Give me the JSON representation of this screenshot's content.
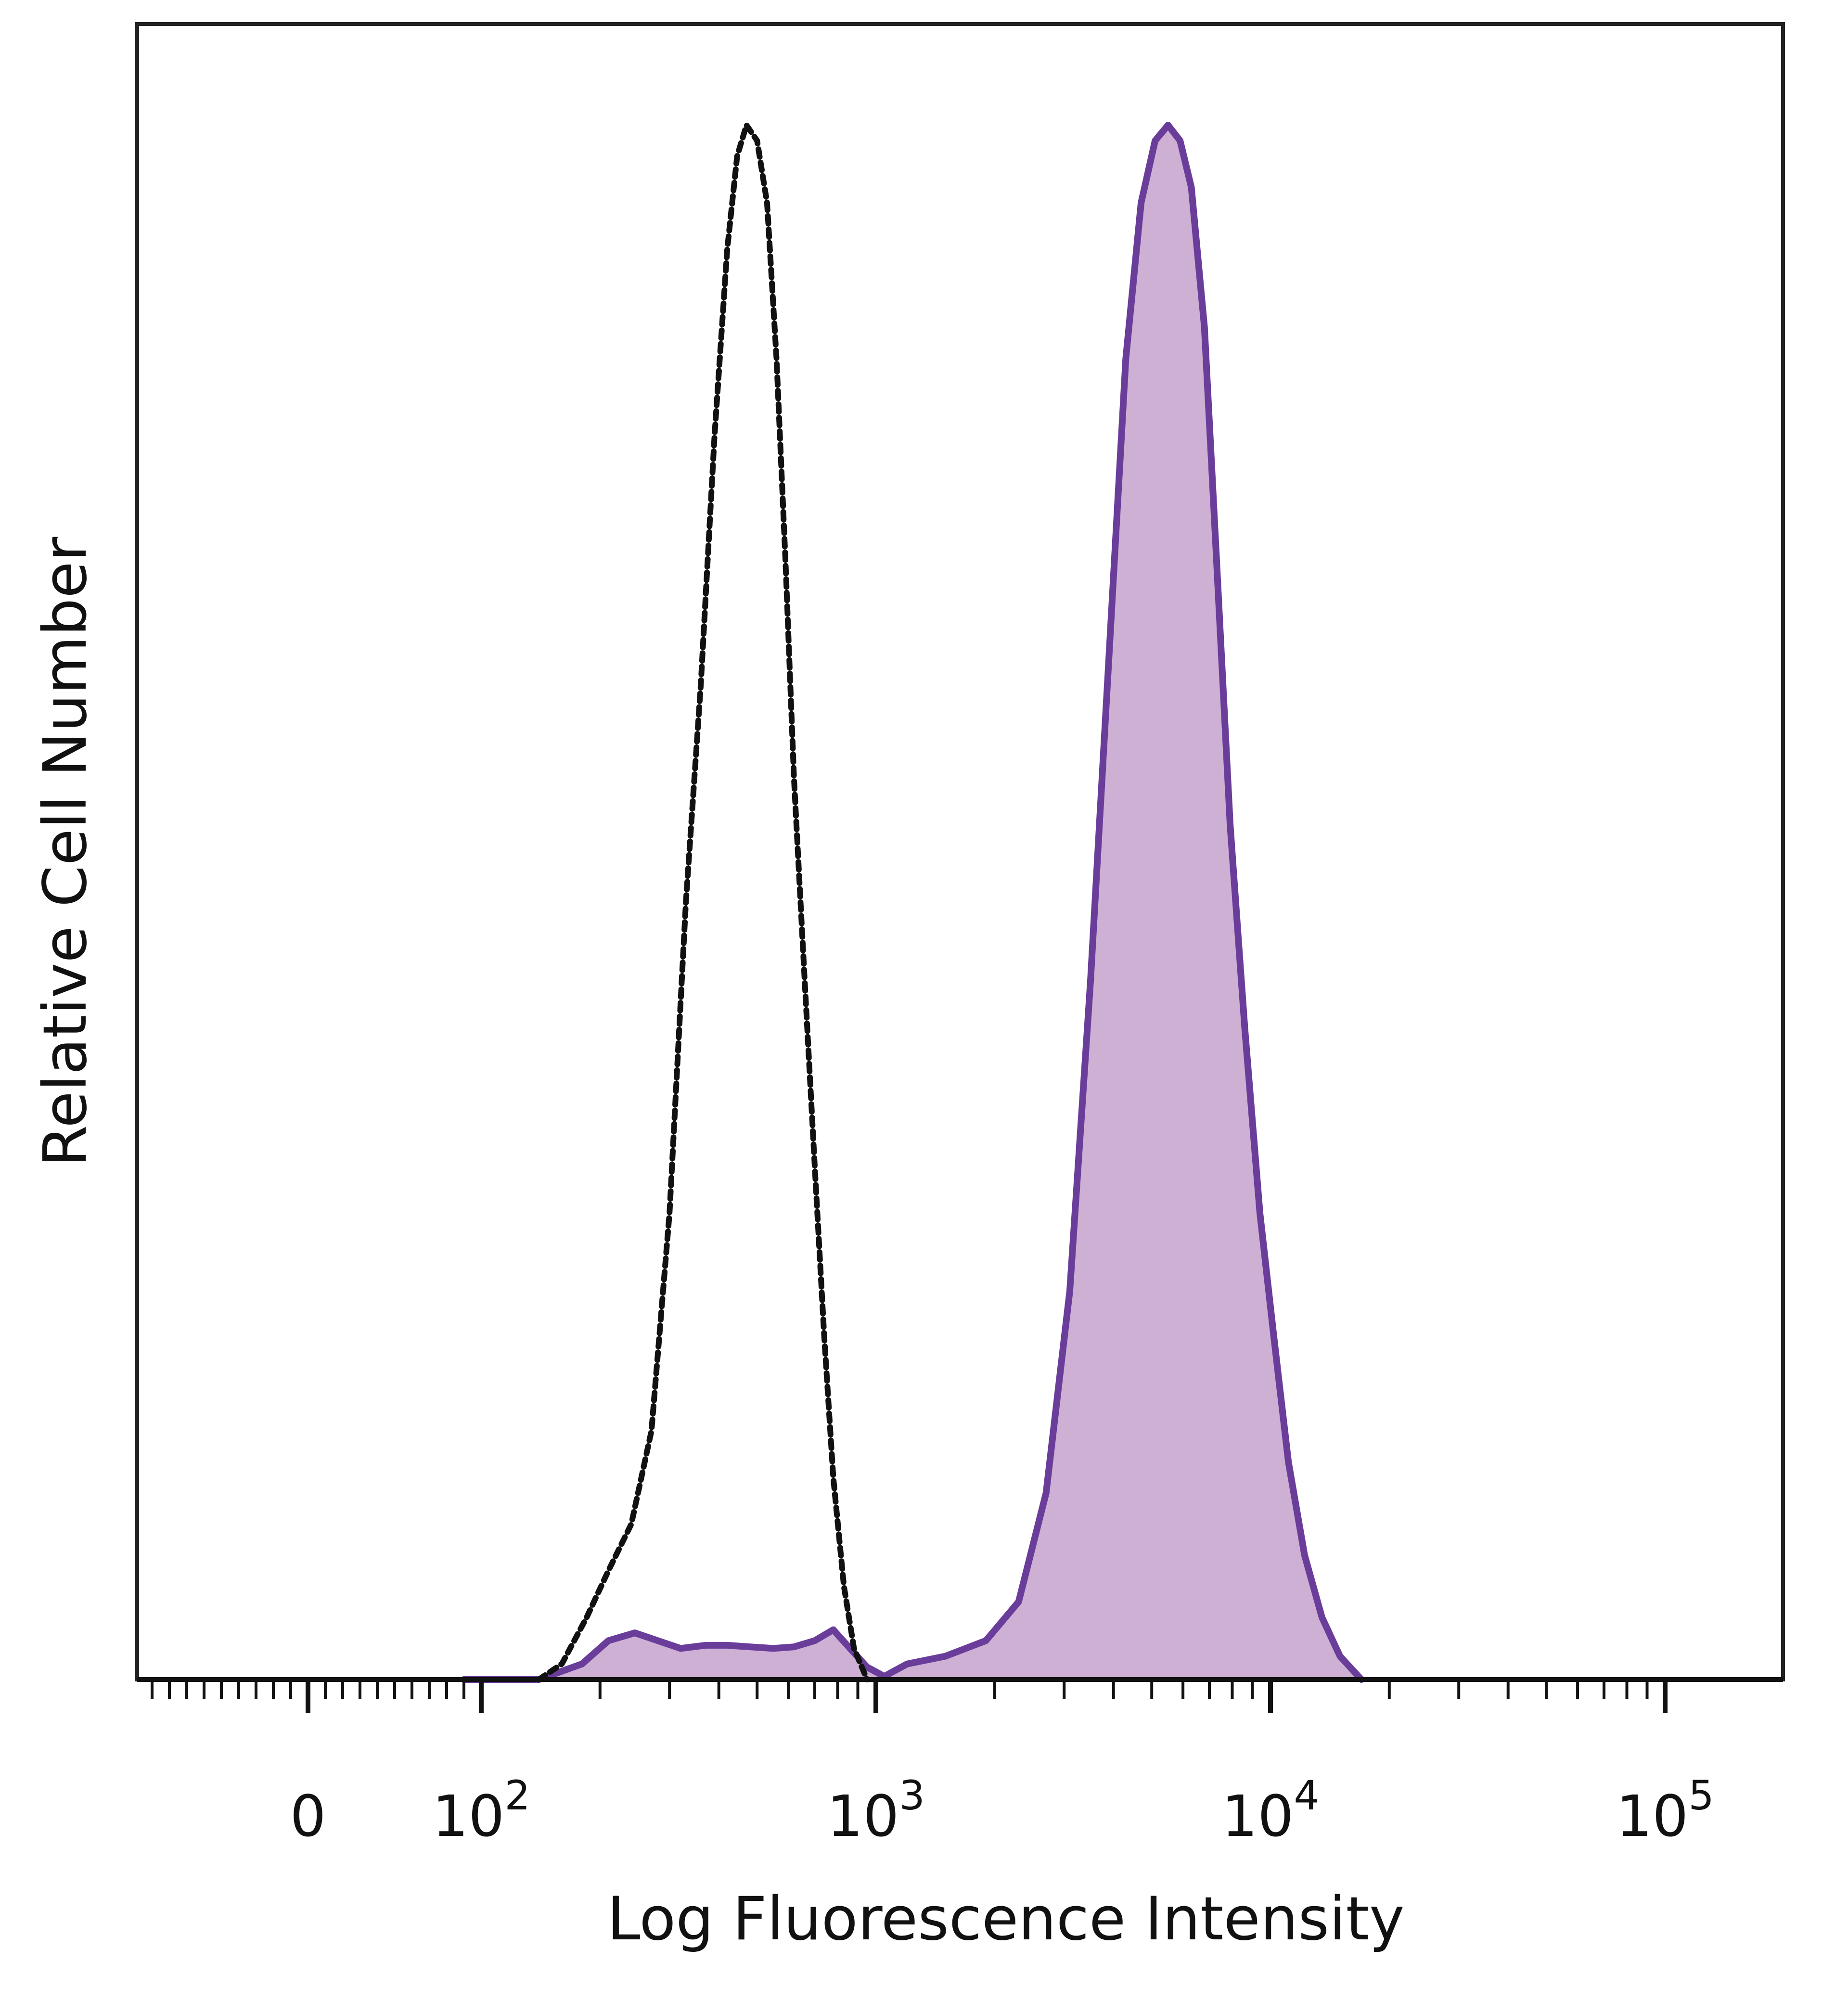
{
  "chart_data": {
    "type": "area",
    "title": "",
    "xlabel": "Log Fluorescence Intensity",
    "ylabel": "Relative Cell Number",
    "x_scale": "biexponential (log)",
    "xlim": [
      -250,
      250000
    ],
    "ylim": [
      0,
      1.0
    ],
    "grid": false,
    "legend": "none",
    "x_ticks": [
      {
        "value": 0,
        "base": "0",
        "exp": ""
      },
      {
        "value": 100,
        "base": "10",
        "exp": "2"
      },
      {
        "value": 1000,
        "base": "10",
        "exp": "3"
      },
      {
        "value": 10000,
        "base": "10",
        "exp": "4"
      },
      {
        "value": 100000,
        "base": "10",
        "exp": "5"
      }
    ],
    "series": [
      {
        "style": "dashed",
        "fill": false,
        "color": "#111111",
        "points": [
          [
            140,
            0.0
          ],
          [
            160,
            0.01
          ],
          [
            185,
            0.04
          ],
          [
            210,
            0.07
          ],
          [
            240,
            0.1
          ],
          [
            270,
            0.16
          ],
          [
            300,
            0.3
          ],
          [
            330,
            0.5
          ],
          [
            360,
            0.64
          ],
          [
            390,
            0.8
          ],
          [
            420,
            0.92
          ],
          [
            445,
            0.98
          ],
          [
            470,
            1.0
          ],
          [
            500,
            0.99
          ],
          [
            530,
            0.95
          ],
          [
            560,
            0.85
          ],
          [
            590,
            0.72
          ],
          [
            620,
            0.58
          ],
          [
            660,
            0.45
          ],
          [
            700,
            0.33
          ],
          [
            740,
            0.22
          ],
          [
            780,
            0.13
          ],
          [
            830,
            0.06
          ],
          [
            880,
            0.02
          ],
          [
            950,
            0.0
          ]
        ]
      },
      {
        "style": "solid",
        "fill": true,
        "color": "#6a3d9a",
        "fill_color": "#cdb0d4",
        "points": [
          [
            90,
            0.0
          ],
          [
            140,
            0.0
          ],
          [
            180,
            0.01
          ],
          [
            210,
            0.025
          ],
          [
            245,
            0.03
          ],
          [
            280,
            0.025
          ],
          [
            320,
            0.02
          ],
          [
            370,
            0.022
          ],
          [
            420,
            0.022
          ],
          [
            480,
            0.021
          ],
          [
            550,
            0.02
          ],
          [
            620,
            0.021
          ],
          [
            700,
            0.025
          ],
          [
            780,
            0.032
          ],
          [
            860,
            0.02
          ],
          [
            950,
            0.008
          ],
          [
            1050,
            0.002
          ],
          [
            1200,
            0.01
          ],
          [
            1500,
            0.015
          ],
          [
            1900,
            0.025
          ],
          [
            2300,
            0.05
          ],
          [
            2700,
            0.12
          ],
          [
            3100,
            0.25
          ],
          [
            3500,
            0.45
          ],
          [
            3900,
            0.66
          ],
          [
            4300,
            0.85
          ],
          [
            4700,
            0.95
          ],
          [
            5100,
            0.99
          ],
          [
            5500,
            1.0
          ],
          [
            5900,
            0.99
          ],
          [
            6300,
            0.96
          ],
          [
            6800,
            0.87
          ],
          [
            7300,
            0.72
          ],
          [
            7900,
            0.55
          ],
          [
            8600,
            0.42
          ],
          [
            9400,
            0.3
          ],
          [
            10200,
            0.22
          ],
          [
            11100,
            0.14
          ],
          [
            12200,
            0.08
          ],
          [
            13500,
            0.04
          ],
          [
            15000,
            0.015
          ],
          [
            17000,
            0.0
          ]
        ]
      }
    ]
  }
}
